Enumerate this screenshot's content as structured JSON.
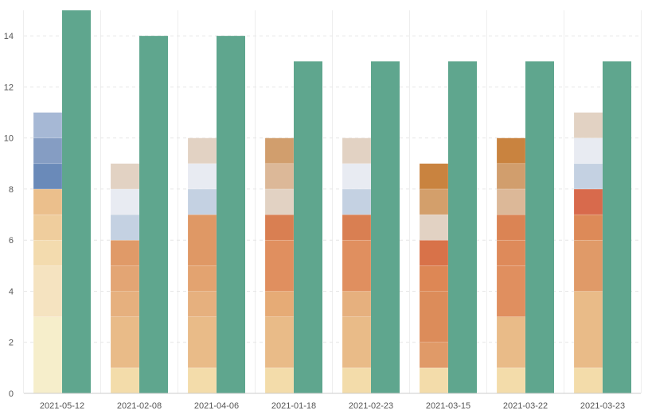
{
  "chart_data": {
    "type": "bar",
    "stacked": true,
    "grid": "horizontal dashed",
    "ylim": [
      0,
      15
    ],
    "y_ticks": [
      0,
      2,
      4,
      6,
      8,
      10,
      12,
      14
    ],
    "y_tick_labels": [
      "0",
      "2",
      "4",
      "6",
      "8",
      "10",
      "12",
      "14"
    ],
    "categories": [
      "2021-05-12",
      "2021-02-08",
      "2021-04-06",
      "2021-01-18",
      "2021-02-23",
      "2021-03-15",
      "2021-03-22",
      "2021-03-23"
    ],
    "stacked_bars": [
      {
        "category": "2021-05-12",
        "segments": [
          {
            "value": 3,
            "color": "#f6eecb"
          },
          {
            "value": 2,
            "color": "#f5e3c0"
          },
          {
            "value": 1,
            "color": "#f3dbae"
          },
          {
            "value": 1,
            "color": "#efcd9d"
          },
          {
            "value": 1,
            "color": "#ebbf8c"
          },
          {
            "value": 1,
            "color": "#6a8ab9"
          },
          {
            "value": 1,
            "color": "#859dc3"
          },
          {
            "value": 1,
            "color": "#a6b8d5"
          }
        ]
      },
      {
        "category": "2021-02-08",
        "segments": [
          {
            "value": 1,
            "color": "#f3dcaa"
          },
          {
            "value": 2,
            "color": "#e9bb88"
          },
          {
            "value": 1,
            "color": "#e6b07e"
          },
          {
            "value": 1,
            "color": "#e3a574"
          },
          {
            "value": 1,
            "color": "#e09a68"
          },
          {
            "value": 1,
            "color": "#c4d1e2"
          },
          {
            "value": 1,
            "color": "#e8ebf2"
          },
          {
            "value": 1,
            "color": "#e2d2c3"
          }
        ]
      },
      {
        "category": "2021-04-06",
        "segments": [
          {
            "value": 1,
            "color": "#f3dcaa"
          },
          {
            "value": 2,
            "color": "#e9bb88"
          },
          {
            "value": 1,
            "color": "#e6b07e"
          },
          {
            "value": 1,
            "color": "#e3a370"
          },
          {
            "value": 2,
            "color": "#df9865"
          },
          {
            "value": 1,
            "color": "#c4d1e2"
          },
          {
            "value": 1,
            "color": "#e8ebf2"
          },
          {
            "value": 1,
            "color": "#e2d2c3"
          }
        ]
      },
      {
        "category": "2021-01-18",
        "segments": [
          {
            "value": 1,
            "color": "#f3dcaa"
          },
          {
            "value": 2,
            "color": "#e9bb88"
          },
          {
            "value": 1,
            "color": "#e6ab76"
          },
          {
            "value": 2,
            "color": "#e08f5f"
          },
          {
            "value": 1,
            "color": "#d97f52"
          },
          {
            "value": 1,
            "color": "#e2d2c3"
          },
          {
            "value": 1,
            "color": "#dcb898"
          },
          {
            "value": 1,
            "color": "#d19e6d"
          }
        ]
      },
      {
        "category": "2021-02-23",
        "segments": [
          {
            "value": 1,
            "color": "#f3dcaa"
          },
          {
            "value": 2,
            "color": "#e9bb88"
          },
          {
            "value": 1,
            "color": "#e6b07e"
          },
          {
            "value": 2,
            "color": "#e08f5f"
          },
          {
            "value": 1,
            "color": "#d97f52"
          },
          {
            "value": 1,
            "color": "#c4d1e2"
          },
          {
            "value": 1,
            "color": "#e8ebf2"
          },
          {
            "value": 1,
            "color": "#e2d2c3"
          }
        ]
      },
      {
        "category": "2021-03-15",
        "segments": [
          {
            "value": 1,
            "color": "#f3dcaa"
          },
          {
            "value": 1,
            "color": "#e09a68"
          },
          {
            "value": 2,
            "color": "#dc8c5a"
          },
          {
            "value": 1,
            "color": "#dd8755"
          },
          {
            "value": 1,
            "color": "#d87249"
          },
          {
            "value": 1,
            "color": "#e2d2c3"
          },
          {
            "value": 1,
            "color": "#d39f6b"
          },
          {
            "value": 1,
            "color": "#c9833f"
          }
        ]
      },
      {
        "category": "2021-03-22",
        "segments": [
          {
            "value": 1,
            "color": "#f3dcaa"
          },
          {
            "value": 2,
            "color": "#e9bb88"
          },
          {
            "value": 2,
            "color": "#e08f5f"
          },
          {
            "value": 1,
            "color": "#de8a5a"
          },
          {
            "value": 1,
            "color": "#db8454"
          },
          {
            "value": 1,
            "color": "#dcb898"
          },
          {
            "value": 1,
            "color": "#d19e6d"
          },
          {
            "value": 1,
            "color": "#c9833f"
          }
        ]
      },
      {
        "category": "2021-03-23",
        "segments": [
          {
            "value": 1,
            "color": "#f3dcaa"
          },
          {
            "value": 3,
            "color": "#e9bb88"
          },
          {
            "value": 2,
            "color": "#e09a68"
          },
          {
            "value": 1,
            "color": "#dd8a58"
          },
          {
            "value": 1,
            "color": "#d86a4c"
          },
          {
            "value": 1,
            "color": "#c4d1e2"
          },
          {
            "value": 1,
            "color": "#e8ebf2"
          },
          {
            "value": 1,
            "color": "#e2d2c3"
          }
        ]
      }
    ],
    "total_bars": {
      "color": "#5fa68e",
      "values": [
        15,
        14,
        14,
        13,
        13,
        13,
        13,
        13
      ]
    }
  }
}
